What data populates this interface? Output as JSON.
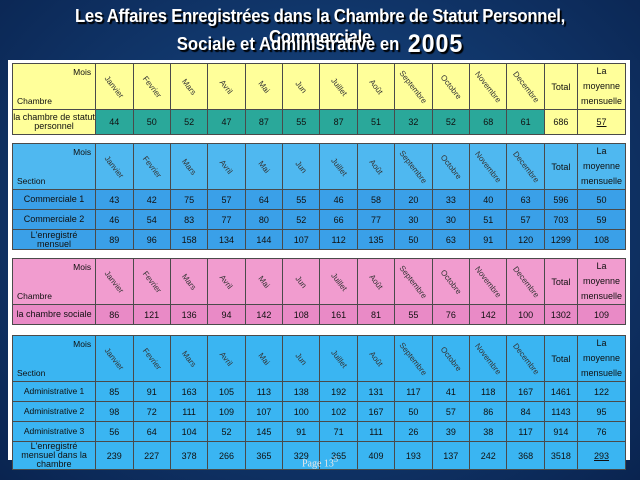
{
  "title": {
    "line1": "Les Affaires Enregistrées dans la Chambre de Statut Personnel, Commerciale",
    "line2": "Sociale et Administrative en",
    "year": "2005"
  },
  "months": [
    "Janvier",
    "Fevrier",
    "Mars",
    "Avril",
    "Mai",
    "Jun",
    "Juillet",
    "Août",
    "Septembre",
    "Octobre",
    "Novembre",
    "Decembre"
  ],
  "common": {
    "mois": "Mois",
    "total": "Total",
    "moyenne": "La moyenne mensuelle"
  },
  "statut": {
    "corner_label": "Chambre",
    "rows": [
      {
        "label": "la chambre de statut personnel",
        "values": [
          "44",
          "50",
          "52",
          "47",
          "87",
          "55",
          "87",
          "51",
          "32",
          "52",
          "68",
          "61"
        ],
        "total": "686",
        "moyenne": "57"
      }
    ]
  },
  "commerciale": {
    "corner_label": "Section",
    "rows": [
      {
        "label": "Commerciale 1",
        "values": [
          "43",
          "42",
          "75",
          "57",
          "64",
          "55",
          "46",
          "58",
          "20",
          "33",
          "40",
          "63"
        ],
        "total": "596",
        "moyenne": "50"
      },
      {
        "label": "Commerciale 2",
        "values": [
          "46",
          "54",
          "83",
          "77",
          "80",
          "52",
          "66",
          "77",
          "30",
          "30",
          "51",
          "57"
        ],
        "total": "703",
        "moyenne": "59"
      },
      {
        "label": "L'enregistré mensuel",
        "values": [
          "89",
          "96",
          "158",
          "134",
          "144",
          "107",
          "112",
          "135",
          "50",
          "63",
          "91",
          "120"
        ],
        "total": "1299",
        "moyenne": "108"
      }
    ]
  },
  "sociale": {
    "corner_label": "Chambre",
    "rows": [
      {
        "label": "la chambre sociale",
        "values": [
          "86",
          "121",
          "136",
          "94",
          "142",
          "108",
          "161",
          "81",
          "55",
          "76",
          "142",
          "100"
        ],
        "total": "1302",
        "moyenne": "109"
      }
    ]
  },
  "administrative": {
    "corner_label": "Section",
    "rows": [
      {
        "label": "Administrative 1",
        "values": [
          "85",
          "91",
          "163",
          "105",
          "113",
          "138",
          "192",
          "131",
          "117",
          "41",
          "118",
          "167"
        ],
        "total": "1461",
        "moyenne": "122"
      },
      {
        "label": "Administrative 2",
        "values": [
          "98",
          "72",
          "111",
          "109",
          "107",
          "100",
          "102",
          "167",
          "50",
          "57",
          "86",
          "84"
        ],
        "total": "1143",
        "moyenne": "95"
      },
      {
        "label": "Administrative 3",
        "values": [
          "56",
          "64",
          "104",
          "52",
          "145",
          "91",
          "71",
          "111",
          "26",
          "39",
          "38",
          "117"
        ],
        "total": "914",
        "moyenne": "76"
      },
      {
        "label": "L'enregistré mensuel dans la chambre",
        "values": [
          "239",
          "227",
          "378",
          "266",
          "365",
          "329",
          "365",
          "409",
          "193",
          "137",
          "242",
          "368"
        ],
        "total": "3518",
        "moyenne": "293"
      }
    ]
  },
  "footer": {
    "page": "Page 13",
    "superscript": "5"
  }
}
